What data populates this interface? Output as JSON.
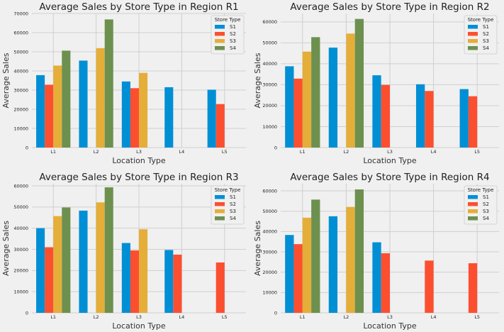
{
  "colors": {
    "S1": "#008fd5",
    "S2": "#fc4f30",
    "S3": "#e5ae38",
    "S4": "#6d904f"
  },
  "chart_data": [
    {
      "type": "bar",
      "title": "Average Sales by Store Type in Region R1",
      "xlabel": "Location Type",
      "ylabel": "Average Sales",
      "categories": [
        "L1",
        "L2",
        "L3",
        "L4",
        "L5"
      ],
      "ylim": [
        0,
        70000
      ],
      "yticks": [
        0,
        10000,
        20000,
        30000,
        40000,
        50000,
        60000,
        70000
      ],
      "grid": true,
      "legend_title": "Store Type",
      "legend_position": "top-right",
      "series": [
        {
          "name": "S1",
          "values": [
            37800,
            45400,
            34500,
            31500,
            30200
          ]
        },
        {
          "name": "S2",
          "values": [
            32800,
            null,
            31000,
            null,
            22700
          ]
        },
        {
          "name": "S3",
          "values": [
            42800,
            51900,
            39000,
            null,
            null
          ]
        },
        {
          "name": "S4",
          "values": [
            50600,
            66900,
            null,
            null,
            null
          ]
        }
      ]
    },
    {
      "type": "bar",
      "title": "Average Sales by Store Type in Region R2",
      "xlabel": "Location Type",
      "ylabel": "Average Sales",
      "categories": [
        "L1",
        "L2",
        "L3",
        "L4",
        "L5"
      ],
      "ylim": [
        0,
        64000
      ],
      "yticks": [
        0,
        10000,
        20000,
        30000,
        40000,
        50000,
        60000
      ],
      "grid": true,
      "legend_title": "Store Type",
      "legend_position": "top-right",
      "series": [
        {
          "name": "S1",
          "values": [
            38800,
            47700,
            34500,
            30200,
            27900
          ]
        },
        {
          "name": "S2",
          "values": [
            32900,
            null,
            29900,
            27000,
            24500
          ]
        },
        {
          "name": "S3",
          "values": [
            45800,
            54400,
            null,
            null,
            null
          ]
        },
        {
          "name": "S4",
          "values": [
            52700,
            61400,
            null,
            null,
            null
          ]
        }
      ]
    },
    {
      "type": "bar",
      "title": "Average Sales by Store Type in Region R3",
      "xlabel": "Location Type",
      "ylabel": "Average Sales",
      "categories": [
        "L1",
        "L2",
        "L3",
        "L4",
        "L5"
      ],
      "ylim": [
        0,
        61000
      ],
      "yticks": [
        0,
        10000,
        20000,
        30000,
        40000,
        50000,
        60000
      ],
      "grid": true,
      "legend_title": "Store Type",
      "legend_position": "top-right",
      "series": [
        {
          "name": "S1",
          "values": [
            40000,
            48300,
            33000,
            29700,
            null
          ]
        },
        {
          "name": "S2",
          "values": [
            31000,
            null,
            29500,
            27500,
            23800
          ]
        },
        {
          "name": "S3",
          "values": [
            45700,
            52200,
            39500,
            null,
            null
          ]
        },
        {
          "name": "S4",
          "values": [
            49800,
            59300,
            null,
            null,
            null
          ]
        }
      ]
    },
    {
      "type": "bar",
      "title": "Average Sales by Store Type in Region R4",
      "xlabel": "Location Type",
      "ylabel": "Average Sales",
      "categories": [
        "L1",
        "L2",
        "L3",
        "L4",
        "L5"
      ],
      "ylim": [
        0,
        63500
      ],
      "yticks": [
        0,
        10000,
        20000,
        30000,
        40000,
        50000,
        60000
      ],
      "grid": true,
      "legend_title": "Store Type",
      "legend_position": "top-right",
      "series": [
        {
          "name": "S1",
          "values": [
            38300,
            47500,
            34700,
            null,
            null
          ]
        },
        {
          "name": "S2",
          "values": [
            33800,
            null,
            29300,
            25700,
            24400
          ]
        },
        {
          "name": "S3",
          "values": [
            46800,
            52100,
            null,
            null,
            null
          ]
        },
        {
          "name": "S4",
          "values": [
            55700,
            60700,
            null,
            null,
            null
          ]
        }
      ]
    }
  ]
}
